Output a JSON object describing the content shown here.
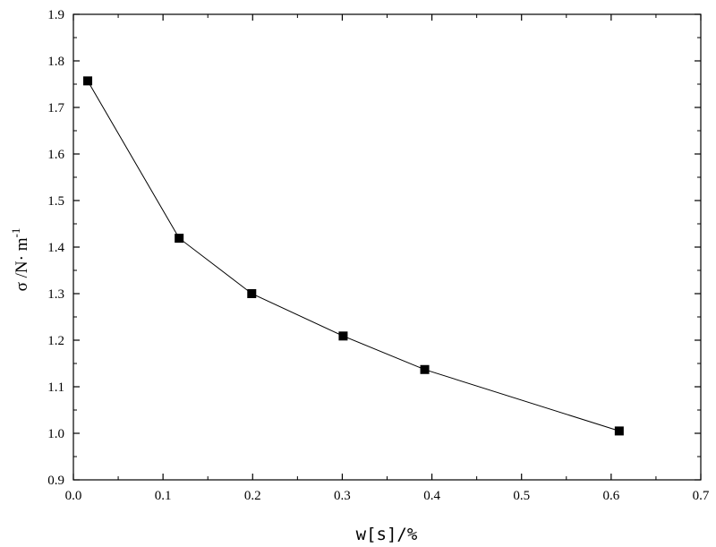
{
  "chart_data": {
    "type": "line",
    "xlabel": "w[s]/%",
    "ylabel": {
      "prefix": "σ /N· m",
      "superscript": "-1"
    },
    "xlim": [
      0.0,
      0.7
    ],
    "ylim": [
      0.9,
      1.9
    ],
    "x_ticks": [
      "0.0",
      "0.1",
      "0.2",
      "0.3",
      "0.4",
      "0.5",
      "0.6",
      "0.7"
    ],
    "y_ticks": [
      "0.9",
      "1.0",
      "1.1",
      "1.2",
      "1.3",
      "1.4",
      "1.5",
      "1.6",
      "1.7",
      "1.8",
      "1.9"
    ],
    "grid": false,
    "marker": "square",
    "series": [
      {
        "x": [
          0.016,
          0.118,
          0.199,
          0.301,
          0.392,
          0.609
        ],
        "y": [
          1.757,
          1.419,
          1.3,
          1.209,
          1.137,
          1.005
        ]
      }
    ]
  }
}
